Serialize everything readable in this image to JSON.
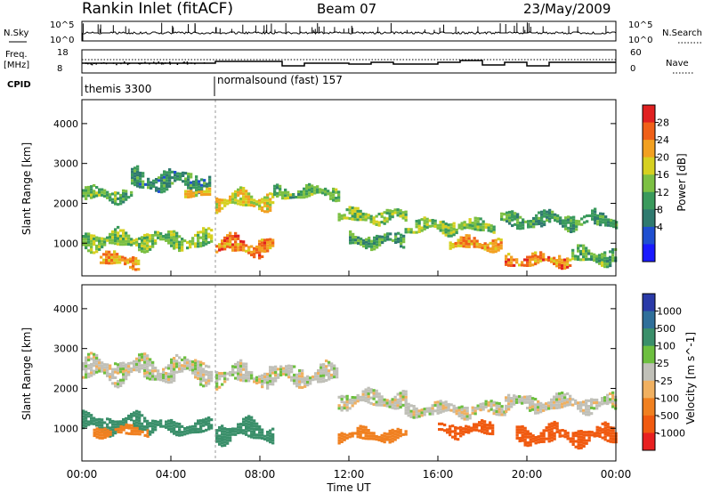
{
  "header": {
    "station": "Rankin Inlet (fitACF)",
    "beam": "Beam 07",
    "date": "23/May/2009"
  },
  "panel_labels": {
    "nsky": "N.Sky",
    "freq_line1": "Freq.",
    "freq_line2": "[MHz]",
    "cpid": "CPID",
    "nsearch": "N.Search",
    "nave": "Nave",
    "nsky_ticks": [
      "10^5",
      "10^0"
    ],
    "freq_ticks": [
      "18",
      "8"
    ],
    "nave_ticks": [
      "60",
      "0"
    ]
  },
  "cpid_modes": [
    {
      "label": "themis 3300",
      "start_hour": 0,
      "end_hour": 6
    },
    {
      "label": "normalsound (fast) 157",
      "start_hour": 6,
      "end_hour": 24
    }
  ],
  "axes": {
    "xlabel": "Time UT",
    "xticks": [
      "00:00",
      "04:00",
      "08:00",
      "12:00",
      "16:00",
      "20:00",
      "00:00"
    ],
    "xlim_hours": [
      0,
      24
    ],
    "ylabel": "Slant Range [km]",
    "yticks": [
      "1000",
      "2000",
      "3000",
      "4000"
    ],
    "ylim_km": [
      180,
      4600
    ]
  },
  "colorbars": {
    "power": {
      "label": "Power [dB]",
      "ticks": [
        "4",
        "8",
        "12",
        "16",
        "20",
        "24",
        "28"
      ],
      "colors": [
        "#1a1aff",
        "#1f4fd0",
        "#2f7a6f",
        "#3a9a5c",
        "#7cc043",
        "#d6d020",
        "#f2a020",
        "#f06018",
        "#e02020"
      ]
    },
    "velocity": {
      "label": "Velocity [m s^-1]",
      "ticks": [
        "1000",
        "500",
        "100",
        "25",
        "-25",
        "-100",
        "-500",
        "-1000"
      ],
      "colors": [
        "#2a3aa8",
        "#2f6f9a",
        "#3a8f6a",
        "#6dbf3f",
        "#c0c0b8",
        "#f0b060",
        "#f08020",
        "#f05a10",
        "#e82020"
      ]
    }
  },
  "chart_data": [
    {
      "type": "heatmap",
      "title": "Power",
      "x_hours": [
        0,
        24
      ],
      "y_km": [
        180,
        4600
      ],
      "bands": [
        {
          "t0": 0.0,
          "t1": 2.2,
          "r_center": 2200,
          "r_width": 350,
          "level_db": 14
        },
        {
          "t0": 2.2,
          "t1": 5.8,
          "r_center": 2550,
          "r_width": 500,
          "level_db": 10
        },
        {
          "t0": 4.6,
          "t1": 5.8,
          "r_center": 2250,
          "r_width": 200,
          "level_db": 22
        },
        {
          "t0": 0.0,
          "t1": 5.8,
          "r_center": 1050,
          "r_width": 450,
          "level_db": 16
        },
        {
          "t0": 0.8,
          "t1": 2.6,
          "r_center": 550,
          "r_width": 350,
          "level_db": 24
        },
        {
          "t0": 6.0,
          "t1": 8.6,
          "r_center": 2050,
          "r_width": 450,
          "level_db": 20
        },
        {
          "t0": 6.0,
          "t1": 8.6,
          "r_center": 900,
          "r_width": 450,
          "level_db": 26
        },
        {
          "t0": 8.6,
          "t1": 11.5,
          "r_center": 2250,
          "r_width": 300,
          "level_db": 14
        },
        {
          "t0": 11.5,
          "t1": 14.5,
          "r_center": 1650,
          "r_width": 350,
          "level_db": 16
        },
        {
          "t0": 12.0,
          "t1": 14.5,
          "r_center": 1050,
          "r_width": 350,
          "level_db": 12
        },
        {
          "t0": 14.5,
          "t1": 18.5,
          "r_center": 1400,
          "r_width": 350,
          "level_db": 16
        },
        {
          "t0": 16.5,
          "t1": 18.8,
          "r_center": 950,
          "r_width": 300,
          "level_db": 24
        },
        {
          "t0": 18.8,
          "t1": 24.0,
          "r_center": 1550,
          "r_width": 400,
          "level_db": 12
        },
        {
          "t0": 19.0,
          "t1": 22.0,
          "r_center": 550,
          "r_width": 300,
          "level_db": 26
        },
        {
          "t0": 22.0,
          "t1": 24.0,
          "r_center": 650,
          "r_width": 400,
          "level_db": 14
        }
      ]
    },
    {
      "type": "heatmap",
      "title": "Velocity",
      "x_hours": [
        0,
        24
      ],
      "y_km": [
        180,
        4600
      ],
      "bands": [
        {
          "t0": 0.0,
          "t1": 5.8,
          "r_center": 2450,
          "r_width": 600,
          "velocity": 0
        },
        {
          "t0": 0.0,
          "t1": 3.0,
          "r_center": 1100,
          "r_width": 450,
          "velocity": 150
        },
        {
          "t0": 0.5,
          "t1": 3.0,
          "r_center": 900,
          "r_width": 250,
          "velocity": -300
        },
        {
          "t0": 3.0,
          "t1": 5.8,
          "r_center": 1000,
          "r_width": 350,
          "velocity": 200
        },
        {
          "t0": 6.0,
          "t1": 8.6,
          "r_center": 900,
          "r_width": 500,
          "velocity": 400
        },
        {
          "t0": 6.0,
          "t1": 11.5,
          "r_center": 2300,
          "r_width": 500,
          "velocity": 0
        },
        {
          "t0": 11.5,
          "t1": 14.5,
          "r_center": 1700,
          "r_width": 400,
          "velocity": 0
        },
        {
          "t0": 11.5,
          "t1": 14.5,
          "r_center": 800,
          "r_width": 300,
          "velocity": -300
        },
        {
          "t0": 14.5,
          "t1": 19.0,
          "r_center": 1450,
          "r_width": 350,
          "velocity": 0
        },
        {
          "t0": 16.0,
          "t1": 18.5,
          "r_center": 950,
          "r_width": 350,
          "velocity": -600
        },
        {
          "t0": 19.0,
          "t1": 24.0,
          "r_center": 1600,
          "r_width": 400,
          "velocity": 0
        },
        {
          "t0": 19.5,
          "t1": 24.0,
          "r_center": 800,
          "r_width": 450,
          "velocity": -700
        }
      ]
    }
  ]
}
